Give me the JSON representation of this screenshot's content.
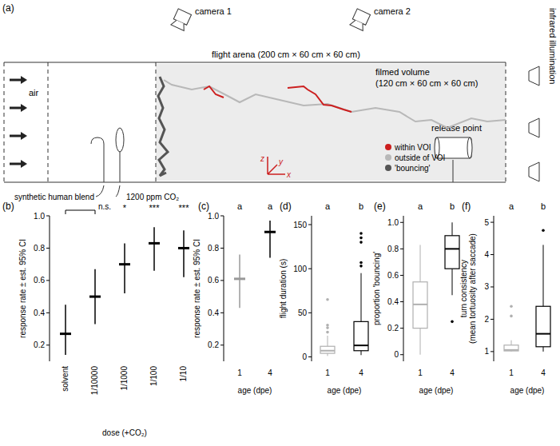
{
  "diagram": {
    "panel_label": "(a)",
    "cameras": [
      "camera 1",
      "camera 2"
    ],
    "arena_label": "flight arena (200 cm × 60 cm × 60 cm)",
    "filmed_volume_label": "filmed volume",
    "filmed_volume_size": "(120 cm × 60 cm × 60 cm)",
    "illumination_label": "infrared illumination",
    "release_label": "release point",
    "air_label": "air",
    "blend_label": "synthetic human blend",
    "co2_label": "1200 ppm CO₂",
    "legend": [
      {
        "label": "within VOI",
        "color": "#cc1f1f"
      },
      {
        "label": "outside of VOI",
        "color": "#b8b8b8"
      },
      {
        "label": "'bouncing'",
        "color": "#555555"
      }
    ],
    "axes_labels": [
      "z",
      "y",
      "x"
    ]
  },
  "chart_data": [
    {
      "type": "errorbar",
      "title": "(b)",
      "x_label": "dose (+CO₂)",
      "y_label": "response rate ± est. 95% CI",
      "categories": [
        "solvent",
        "1/10000",
        "1/1000",
        "1/100",
        "1/10"
      ],
      "values": [
        0.27,
        0.5,
        0.7,
        0.83,
        0.8
      ],
      "ci_low": [
        0.14,
        0.33,
        0.52,
        0.66,
        0.62
      ],
      "ci_high": [
        0.45,
        0.67,
        0.83,
        0.93,
        0.91
      ],
      "annotations": [
        null,
        "n.s.",
        "*",
        "***",
        "***"
      ],
      "color": "#000000",
      "ylim": [
        0.1,
        1.0
      ],
      "yticks": [
        0.2,
        0.4,
        0.6,
        0.8,
        {
          "value": 1,
          "label": "1.0"
        }
      ]
    },
    {
      "type": "errorbar",
      "title": "(c)",
      "x_label": "age (dpe)",
      "y_label": "response rate ± est. 95% CI",
      "categories": [
        "1",
        "4"
      ],
      "values": [
        0.61,
        0.9
      ],
      "ci_low": [
        0.43,
        0.74
      ],
      "ci_high": [
        0.76,
        0.97
      ],
      "group_letters": [
        "a",
        "a"
      ],
      "colors": [
        "#999999",
        "#000000"
      ],
      "ylim": [
        0.1,
        1.0
      ],
      "yticks": [
        0.2,
        0.4,
        0.6,
        0.8,
        {
          "value": 1,
          "label": "1.0"
        }
      ]
    },
    {
      "type": "box",
      "title": "(d)",
      "x_label": "age (dpe)",
      "y_label": "flight duration (s)",
      "categories": [
        "1",
        "4"
      ],
      "boxes": [
        {
          "whisker_low": 1,
          "q1": 4,
          "median": 7,
          "q3": 12,
          "whisker_high": 24,
          "outliers": [
            28,
            33,
            36,
            65
          ]
        },
        {
          "whisker_low": 2,
          "q1": 7,
          "median": 13,
          "q3": 40,
          "whisker_high": 95,
          "outliers": [
            103,
            107,
            130,
            135,
            140
          ]
        }
      ],
      "group_letters": [
        "a",
        "b"
      ],
      "colors": [
        "#b0b0b0",
        "#000000"
      ],
      "ylim": [
        -5,
        160
      ],
      "yticks": [
        0,
        50,
        100,
        150
      ]
    },
    {
      "type": "box",
      "title": "(e)",
      "x_label": "age (dpe)",
      "y_label": "proportion 'bouncing'",
      "categories": [
        "1",
        "4"
      ],
      "boxes": [
        {
          "whisker_low": 0,
          "q1": 0.2,
          "median": 0.38,
          "q3": 0.55,
          "whisker_high": 0.83,
          "outliers": []
        },
        {
          "whisker_low": 0.45,
          "q1": 0.65,
          "median": 0.8,
          "q3": 0.9,
          "whisker_high": 1.0,
          "outliers": [
            0.25
          ]
        }
      ],
      "group_letters": [
        "a",
        "b"
      ],
      "colors": [
        "#b0b0b0",
        "#000000"
      ],
      "ylim": [
        -0.05,
        1.05
      ],
      "yticks": [
        0,
        0.2,
        0.4,
        0.6,
        0.8,
        {
          "value": 1,
          "label": "1.0"
        }
      ]
    },
    {
      "type": "box",
      "title": "(f)",
      "x_label": "age (dpe)",
      "y_label": [
        "turn consistency",
        "(mean tortuosity after saccade)"
      ],
      "categories": [
        "1",
        "4"
      ],
      "boxes": [
        {
          "whisker_low": 1.0,
          "q1": 1.02,
          "median": 1.05,
          "q3": 1.2,
          "whisker_high": 1.35,
          "outliers": [
            2.1,
            2.4
          ]
        },
        {
          "whisker_low": 1.0,
          "q1": 1.15,
          "median": 1.55,
          "q3": 2.4,
          "whisker_high": 4.3,
          "outliers": [
            4.75
          ]
        }
      ],
      "group_letters": [
        "a",
        "b"
      ],
      "colors": [
        "#b0b0b0",
        "#000000"
      ],
      "ylim": [
        0.7,
        5.2
      ],
      "yticks": [
        1,
        2,
        3,
        4,
        5
      ]
    }
  ]
}
